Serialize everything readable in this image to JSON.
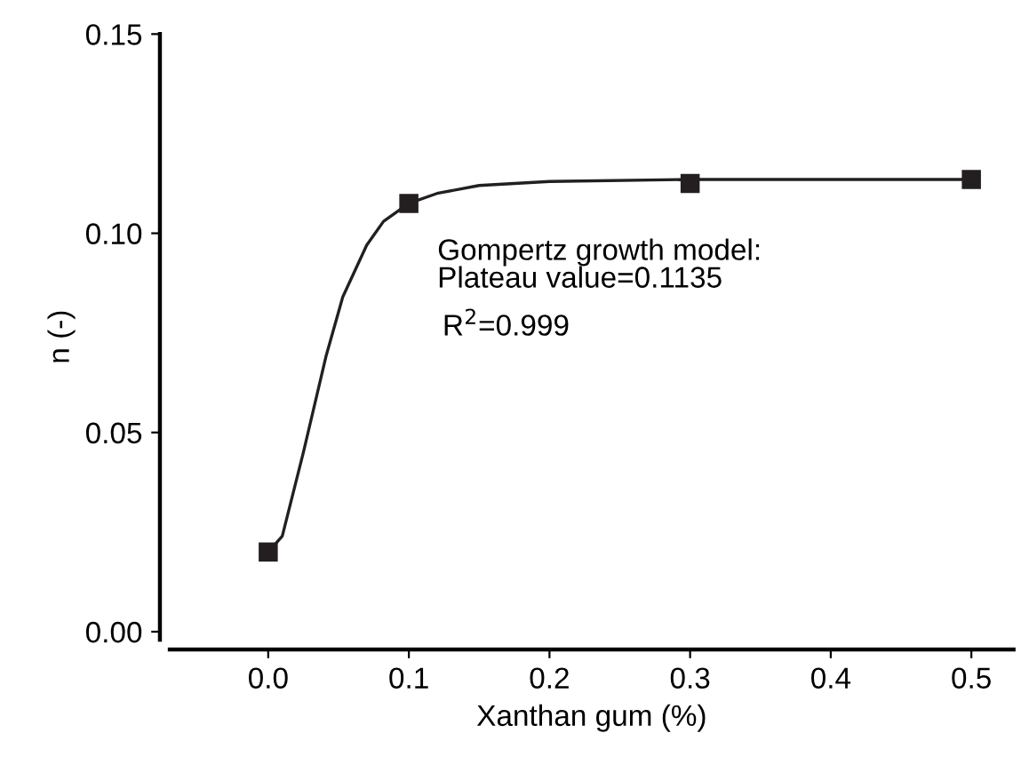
{
  "chart_data": {
    "type": "scatter",
    "xlabel": "Xanthan gum (%)",
    "ylabel": "n (-)",
    "x": [
      0.0,
      0.1,
      0.3,
      0.5
    ],
    "series": [
      {
        "color": "#231f20",
        "marker": "square",
        "values": [
          0.02,
          0.1075,
          0.1125,
          0.1135
        ]
      },
      {
        "type": "line",
        "color": "#231f20",
        "marker": "none",
        "x": [
          0.0,
          0.01,
          0.025,
          0.041,
          0.053,
          0.07,
          0.082,
          0.1,
          0.12,
          0.15,
          0.2,
          0.3,
          0.4,
          0.5
        ],
        "values": [
          0.02,
          0.024,
          0.045,
          0.069,
          0.084,
          0.097,
          0.103,
          0.1075,
          0.11,
          0.112,
          0.113,
          0.1135,
          0.1135,
          0.1135
        ]
      }
    ],
    "annotations": [
      "Gompertz growth model:\nPlateau value=0.1135",
      "R$^{2}$=0.999"
    ],
    "xlim": [
      -0.07,
      0.53
    ],
    "xticks": [
      {
        "value": 0.0,
        "label": "0.0"
      },
      0.1,
      0.2,
      0.3,
      0.4,
      0.5
    ],
    "ylim": [
      -0.002,
      0.15
    ],
    "yticks": [
      {
        "value": 0.0,
        "label": "0.00"
      },
      0.05,
      {
        "value": 0.1,
        "label": "0.10"
      },
      0.15
    ],
    "grid": false,
    "legend": false
  }
}
